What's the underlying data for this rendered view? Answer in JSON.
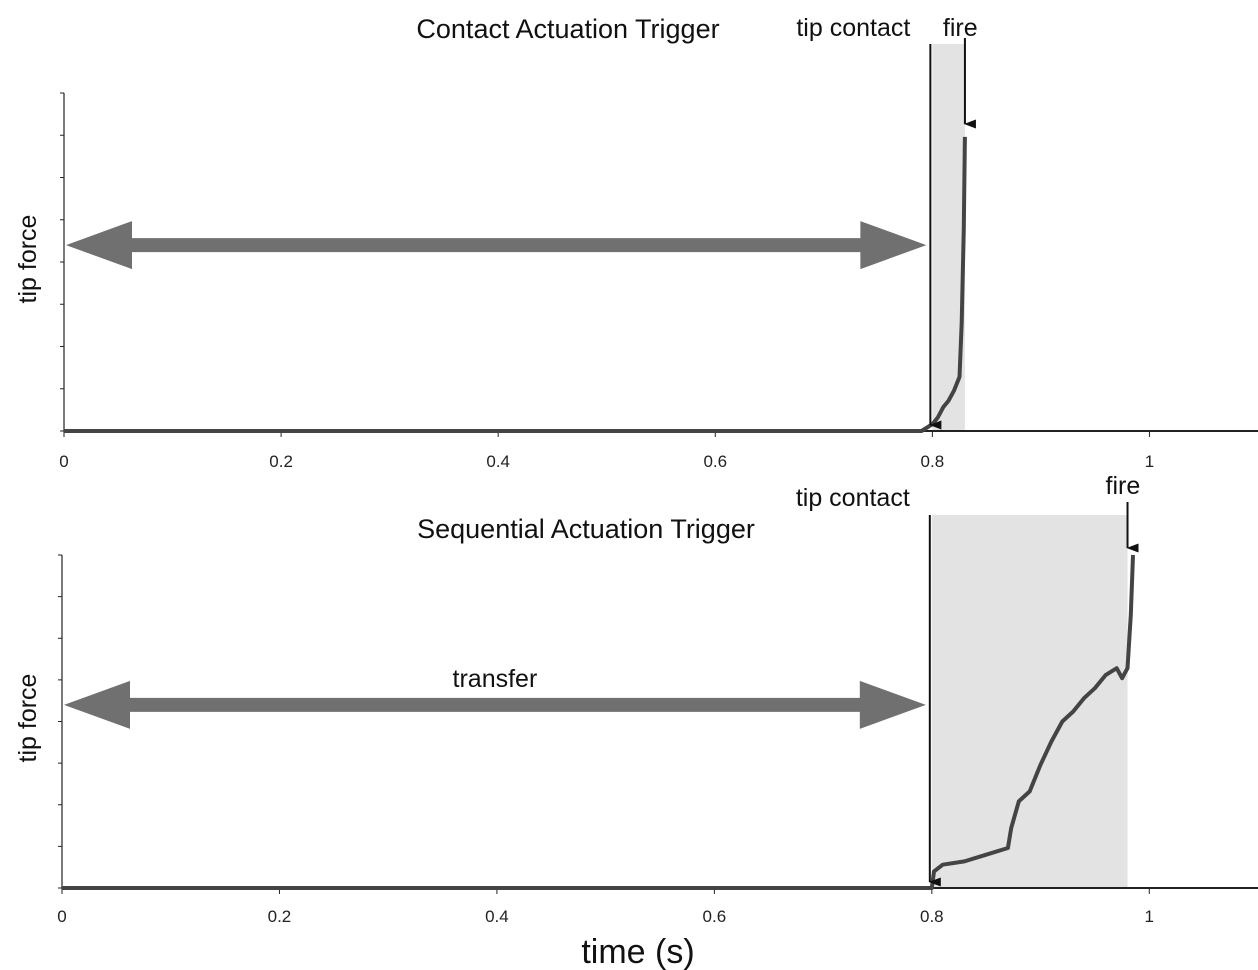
{
  "chart_data": [
    {
      "type": "line",
      "title": "Contact Actuation Trigger",
      "ylabel": "tip force",
      "xlabel": "",
      "xlim": [
        0,
        1.1
      ],
      "ylim": [
        0,
        1
      ],
      "x_ticks": [
        "0",
        "0.2",
        "0.4",
        "0.6",
        "0.8",
        "1"
      ],
      "y_ticks_count": 8,
      "grid": false,
      "shaded_region": [
        0.8,
        0.83
      ],
      "annotations": {
        "tip_contact": {
          "label": "tip contact",
          "x": 0.8
        },
        "fire": {
          "label": "fire",
          "x": 0.83
        },
        "transfer_arrow": {
          "label": "",
          "x_range": [
            0,
            0.8
          ],
          "y": 0.55
        }
      },
      "series": [
        {
          "x": [
            0,
            0.79,
            0.8,
            0.805,
            0.81,
            0.815,
            0.82,
            0.825,
            0.827,
            0.829,
            0.83
          ],
          "y": [
            0,
            0,
            0.02,
            0.04,
            0.07,
            0.09,
            0.12,
            0.16,
            0.32,
            0.6,
            0.87
          ]
        }
      ]
    },
    {
      "type": "line",
      "title": "Sequential Actuation Trigger",
      "ylabel": "tip force",
      "xlabel": "time (s)",
      "xlim": [
        0,
        1.1
      ],
      "ylim": [
        0,
        1
      ],
      "x_ticks": [
        "0",
        "0.2",
        "0.4",
        "0.6",
        "0.8",
        "1"
      ],
      "y_ticks_count": 8,
      "grid": false,
      "shaded_region": [
        0.8,
        0.98
      ],
      "annotations": {
        "tip_contact": {
          "label": "tip contact",
          "x": 0.8
        },
        "fire": {
          "label": "fire",
          "x": 0.98
        },
        "transfer_arrow": {
          "label": "transfer",
          "x_range": [
            0,
            0.8
          ],
          "y": 0.55
        }
      },
      "series": [
        {
          "x": [
            0,
            0.8,
            0.802,
            0.81,
            0.83,
            0.85,
            0.87,
            0.873,
            0.88,
            0.89,
            0.9,
            0.91,
            0.92,
            0.93,
            0.94,
            0.95,
            0.96,
            0.97,
            0.975,
            0.98,
            0.983,
            0.985
          ],
          "y": [
            0,
            0,
            0.05,
            0.07,
            0.08,
            0.1,
            0.12,
            0.18,
            0.26,
            0.29,
            0.37,
            0.44,
            0.5,
            0.53,
            0.57,
            0.6,
            0.64,
            0.66,
            0.63,
            0.66,
            0.82,
            1.0
          ]
        }
      ]
    }
  ]
}
